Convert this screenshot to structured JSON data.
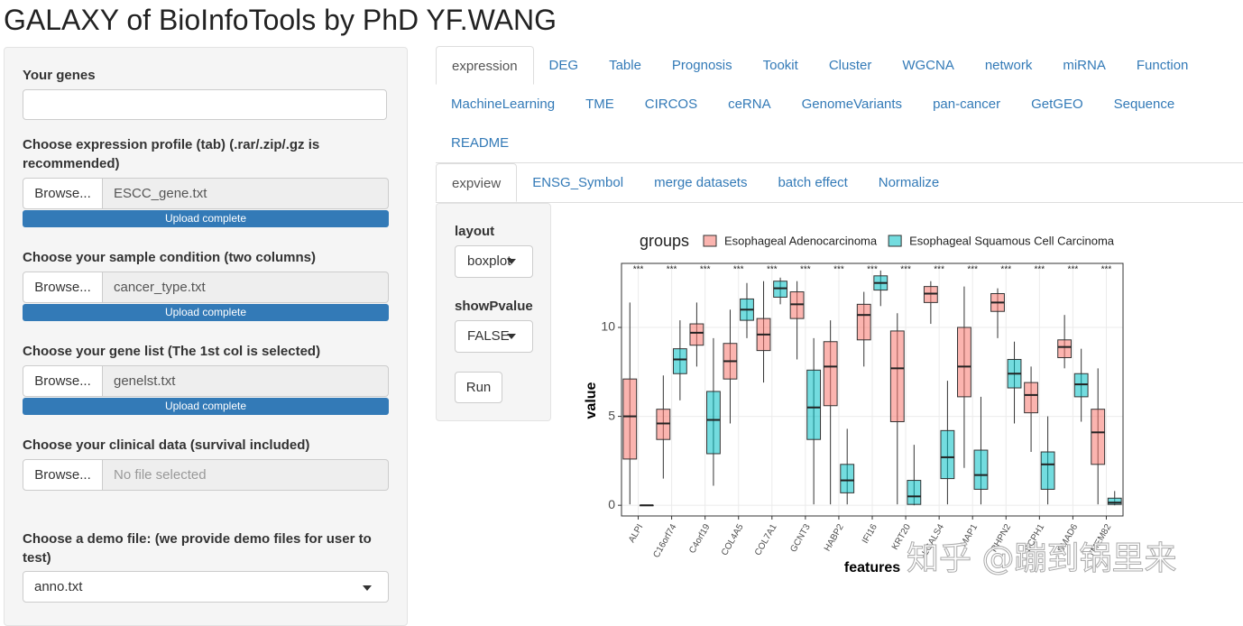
{
  "header": {
    "title": "GALAXY of BioInfoTools by PhD YF.WANG"
  },
  "sidebar": {
    "genes_label": "Your genes",
    "uploads": [
      {
        "label": "Choose expression profile (tab) (.rar/.zip/.gz is recommended)",
        "button": "Browse...",
        "file": "ESCC_gene.txt",
        "status": "Upload complete"
      },
      {
        "label": "Choose your sample condition (two columns)",
        "button": "Browse...",
        "file": "cancer_type.txt",
        "status": "Upload complete"
      },
      {
        "label": "Choose your gene list (The 1st col is selected)",
        "button": "Browse...",
        "file": "genelst.txt",
        "status": "Upload complete"
      },
      {
        "label": "Choose your clinical data (survival included)",
        "button": "Browse...",
        "file": "No file selected"
      }
    ],
    "demo_label": "Choose a demo file: (we provide demo files for user to test)",
    "demo_value": "anno.txt"
  },
  "tabs": [
    "expression",
    "DEG",
    "Table",
    "Prognosis",
    "Tookit",
    "Cluster",
    "WGCNA",
    "network",
    "miRNA",
    "Function",
    "MachineLearning",
    "TME",
    "CIRCOS",
    "ceRNA",
    "GenomeVariants",
    "pan-cancer",
    "GetGEO",
    "Sequence",
    "README"
  ],
  "subtabs": [
    "expview",
    "ENSG_Symbol",
    "merge datasets",
    "batch effect",
    "Normalize"
  ],
  "controls": {
    "layout_label": "layout",
    "layout_value": "boxplot",
    "pvalue_label": "showPvalue",
    "pvalue_value": "FALSE",
    "run": "Run"
  },
  "watermark": "知乎 @蹦到锅里来",
  "chart_data": {
    "type": "boxplot",
    "legend_title": "groups",
    "x_label": "features",
    "y_label": "value",
    "categories": [
      "ALPI",
      "C16orf74",
      "C4orf19",
      "COL4A5",
      "COL7A1",
      "GCNT3",
      "HABP2",
      "IFI16",
      "KRT20",
      "LGALS4",
      "MAP1",
      "RHPN2",
      "SCPH1",
      "SMAD6",
      "TMEM82"
    ],
    "annotations": [
      "***",
      "***",
      "***",
      "***",
      "***",
      "***",
      "***",
      "***",
      "***",
      "***",
      "***",
      "***",
      "***",
      "***",
      "***"
    ],
    "series": [
      {
        "name": "Esophageal Adenocarcinoma",
        "color": "#F8766D",
        "min": [
          0.05,
          1.5,
          7.8,
          4.6,
          6.9,
          8.2,
          0.05,
          7.8,
          0.05,
          10.2,
          2.1,
          9.4,
          3.0,
          7.7,
          0.05
        ],
        "q1": [
          2.6,
          3.7,
          9.0,
          7.1,
          8.7,
          10.5,
          5.6,
          9.3,
          4.7,
          11.4,
          6.1,
          10.9,
          5.2,
          8.3,
          2.3
        ],
        "median": [
          5.0,
          4.6,
          9.7,
          8.1,
          9.6,
          11.3,
          7.8,
          10.7,
          7.7,
          11.9,
          7.8,
          11.4,
          6.2,
          8.9,
          4.1
        ],
        "q3": [
          7.1,
          5.4,
          10.2,
          9.1,
          10.5,
          12.0,
          9.2,
          11.3,
          9.8,
          12.3,
          10.0,
          11.9,
          6.9,
          9.3,
          5.4
        ],
        "max": [
          11.4,
          7.3,
          11.4,
          11.0,
          12.6,
          12.6,
          10.4,
          12.0,
          10.8,
          12.6,
          12.3,
          12.2,
          7.8,
          10.7,
          7.7
        ]
      },
      {
        "name": "Esophageal Squamous Cell Carcinoma",
        "color": "#00BFC4",
        "min": [
          0,
          5.9,
          1.1,
          9.4,
          11.3,
          0.05,
          0.05,
          11.2,
          0,
          0.05,
          0.05,
          4.6,
          0.05,
          4.7,
          0
        ],
        "q1": [
          0,
          7.4,
          2.9,
          10.4,
          11.7,
          3.7,
          0.7,
          12.1,
          0.05,
          1.5,
          0.9,
          6.6,
          0.9,
          6.1,
          0.05
        ],
        "median": [
          0,
          8.2,
          4.8,
          11.0,
          12.2,
          5.5,
          1.4,
          12.5,
          0.5,
          2.7,
          1.7,
          7.4,
          2.3,
          6.8,
          0.15
        ],
        "q3": [
          0,
          8.8,
          6.4,
          11.6,
          12.6,
          7.6,
          2.3,
          12.9,
          1.4,
          4.2,
          3.1,
          8.2,
          3.0,
          7.4,
          0.4
        ],
        "max": [
          0,
          10.4,
          9.4,
          12.5,
          12.8,
          9.4,
          4.3,
          13.2,
          3.4,
          7.0,
          6.1,
          9.2,
          5.0,
          8.8,
          0.8
        ]
      }
    ],
    "ylim": [
      -0.6,
      13.6
    ],
    "yticks": [
      0,
      5,
      10
    ],
    "grid": true
  }
}
